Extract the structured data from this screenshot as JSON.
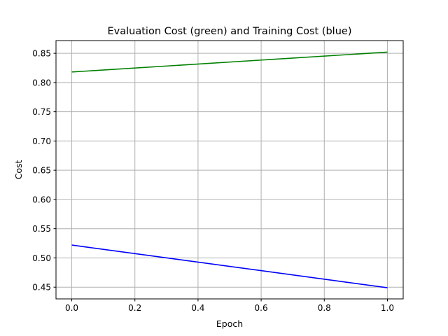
{
  "chart_data": {
    "type": "line",
    "title": "Evaluation Cost (green) and Training Cost (blue)",
    "xlabel": "Epoch",
    "ylabel": "Cost",
    "xlim": [
      -0.05,
      1.05
    ],
    "ylim": [
      0.4299,
      0.8717
    ],
    "grid": true,
    "x_ticks": [
      "0.0",
      "0.2",
      "0.4",
      "0.6",
      "0.8",
      "1.0"
    ],
    "y_ticks": [
      "0.45",
      "0.50",
      "0.55",
      "0.60",
      "0.65",
      "0.70",
      "0.75",
      "0.80",
      "0.85"
    ],
    "series": [
      {
        "x": [
          0,
          1
        ],
        "values": [
          0.818,
          0.852
        ],
        "color": "#008000"
      },
      {
        "x": [
          0,
          1
        ],
        "values": [
          0.522,
          0.449
        ],
        "color": "#0000ff"
      }
    ]
  }
}
